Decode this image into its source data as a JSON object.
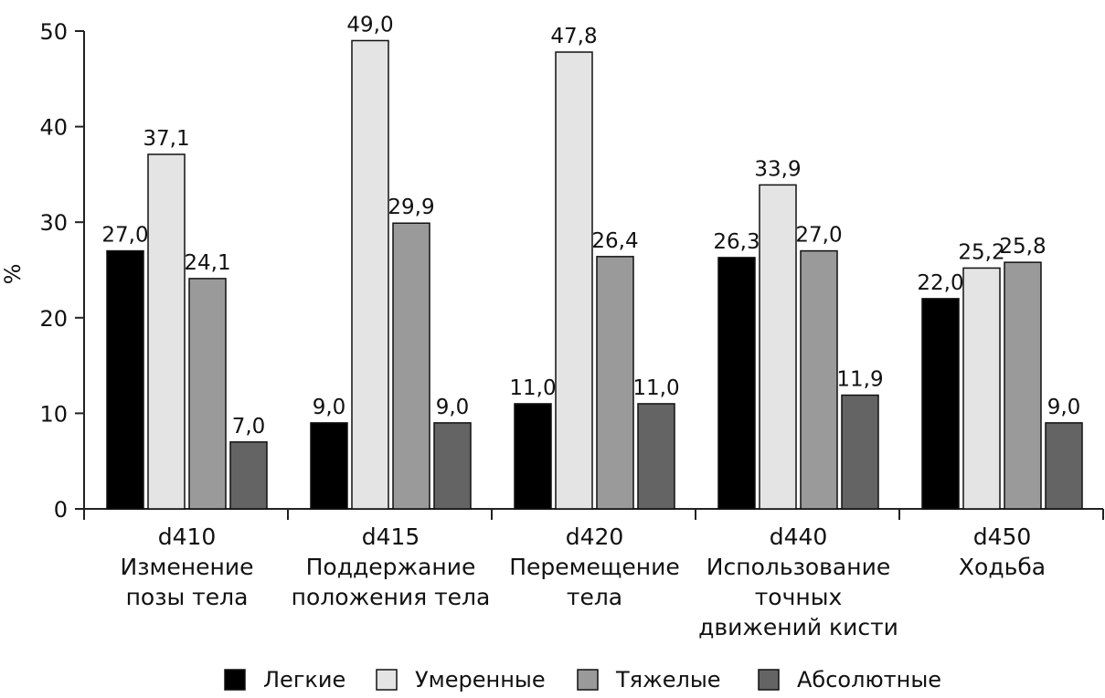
{
  "chart_data": {
    "type": "bar",
    "ylabel": "%",
    "ylim": [
      0,
      50
    ],
    "yticks": [
      "0",
      "10",
      "20",
      "30",
      "40",
      "50"
    ],
    "grid": false,
    "legend_position": "bottom",
    "categories": [
      [
        "d410",
        "Изменение",
        "позы тела"
      ],
      [
        "d415",
        "Поддержание",
        "положения тела"
      ],
      [
        "d420",
        "Перемещение",
        "тела"
      ],
      [
        "d440",
        "Использование",
        "точных",
        "движений кисти"
      ],
      [
        "d450",
        "Ходьба"
      ]
    ],
    "series": [
      {
        "name": "Легкие",
        "color": "#000000",
        "values": [
          27.0,
          9.0,
          11.0,
          26.3,
          22.0
        ],
        "labels": [
          "27,0",
          "9,0",
          "11,0",
          "26,3",
          "22,0"
        ]
      },
      {
        "name": "Умеренные",
        "color": "#e4e4e4",
        "values": [
          37.1,
          49.0,
          47.8,
          33.9,
          25.2
        ],
        "labels": [
          "37,1",
          "49,0",
          "47,8",
          "33,9",
          "25,2"
        ]
      },
      {
        "name": "Тяжелые",
        "color": "#9a9a9a",
        "values": [
          24.1,
          29.9,
          26.4,
          27.0,
          25.8
        ],
        "labels": [
          "24,1",
          "29,9",
          "26,4",
          "27,0",
          "25,8"
        ]
      },
      {
        "name": "Абсолютные",
        "color": "#646464",
        "values": [
          7.0,
          9.0,
          11.0,
          11.9,
          9.0
        ],
        "labels": [
          "7,0",
          "9,0",
          "11,0",
          "11,9",
          "9,0"
        ]
      }
    ]
  }
}
